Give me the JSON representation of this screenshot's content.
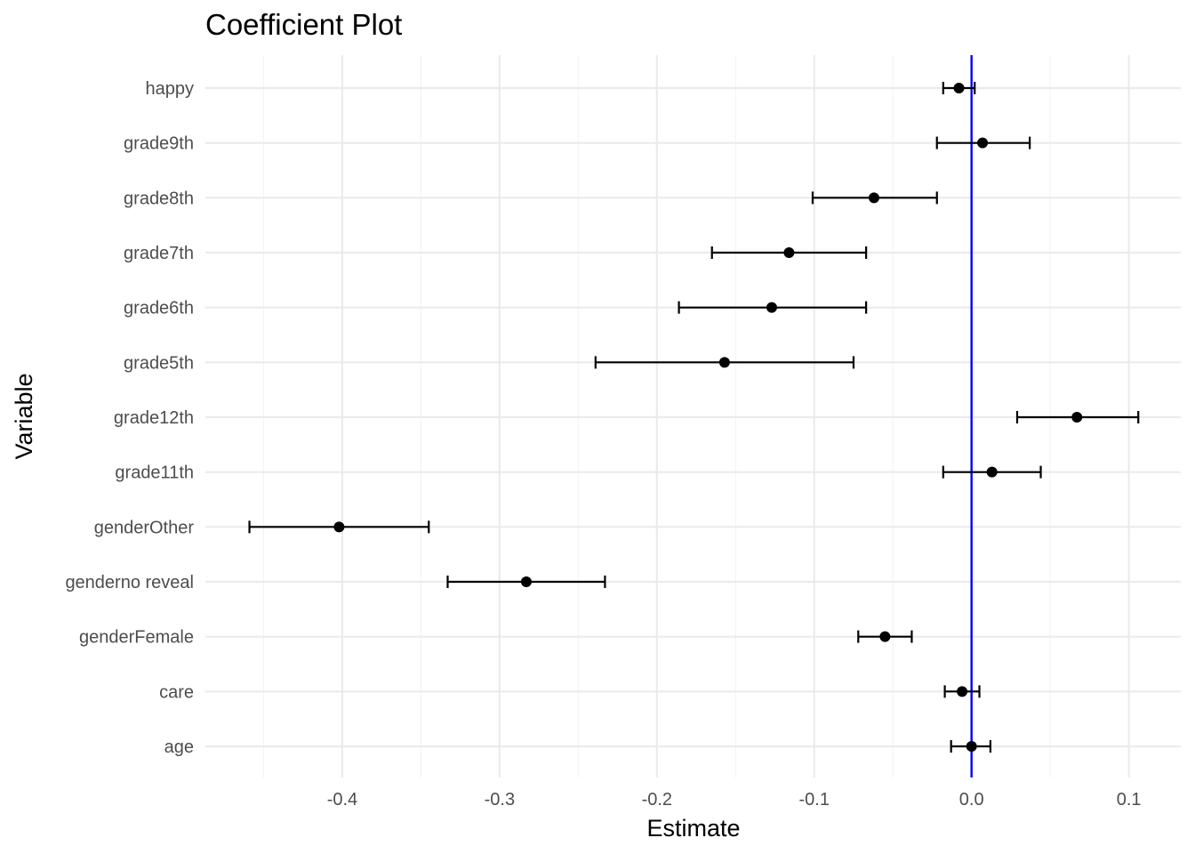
{
  "chart_data": {
    "type": "scatter",
    "title": "Coefficient Plot",
    "xlabel": "Estimate",
    "ylabel": "Variable",
    "xlim": [
      -0.487,
      0.133
    ],
    "x_ticks": [
      -0.4,
      -0.3,
      -0.2,
      -0.1,
      0.0,
      0.1
    ],
    "x_tick_labels": [
      "-0.4",
      "-0.3",
      "-0.2",
      "-0.1",
      "0.0",
      "0.1"
    ],
    "grid": true,
    "reference_line": {
      "x": 0,
      "color": "#0000ff"
    },
    "point_color": "#000000",
    "categories": [
      "age",
      "care",
      "genderFemale",
      "genderno reveal",
      "genderOther",
      "grade11th",
      "grade12th",
      "grade5th",
      "grade6th",
      "grade7th",
      "grade8th",
      "grade9th",
      "happy"
    ],
    "points": [
      {
        "variable": "age",
        "estimate": 0.0,
        "lower": -0.013,
        "upper": 0.012
      },
      {
        "variable": "care",
        "estimate": -0.006,
        "lower": -0.017,
        "upper": 0.005
      },
      {
        "variable": "genderFemale",
        "estimate": -0.055,
        "lower": -0.072,
        "upper": -0.038
      },
      {
        "variable": "genderno reveal",
        "estimate": -0.283,
        "lower": -0.333,
        "upper": -0.233
      },
      {
        "variable": "genderOther",
        "estimate": -0.402,
        "lower": -0.459,
        "upper": -0.345
      },
      {
        "variable": "grade11th",
        "estimate": 0.013,
        "lower": -0.018,
        "upper": 0.044
      },
      {
        "variable": "grade12th",
        "estimate": 0.067,
        "lower": 0.029,
        "upper": 0.106
      },
      {
        "variable": "grade5th",
        "estimate": -0.157,
        "lower": -0.239,
        "upper": -0.075
      },
      {
        "variable": "grade6th",
        "estimate": -0.127,
        "lower": -0.186,
        "upper": -0.067
      },
      {
        "variable": "grade7th",
        "estimate": -0.116,
        "lower": -0.165,
        "upper": -0.067
      },
      {
        "variable": "grade8th",
        "estimate": -0.062,
        "lower": -0.101,
        "upper": -0.022
      },
      {
        "variable": "grade9th",
        "estimate": 0.007,
        "lower": -0.022,
        "upper": 0.037
      },
      {
        "variable": "happy",
        "estimate": -0.008,
        "lower": -0.018,
        "upper": 0.002
      }
    ]
  }
}
